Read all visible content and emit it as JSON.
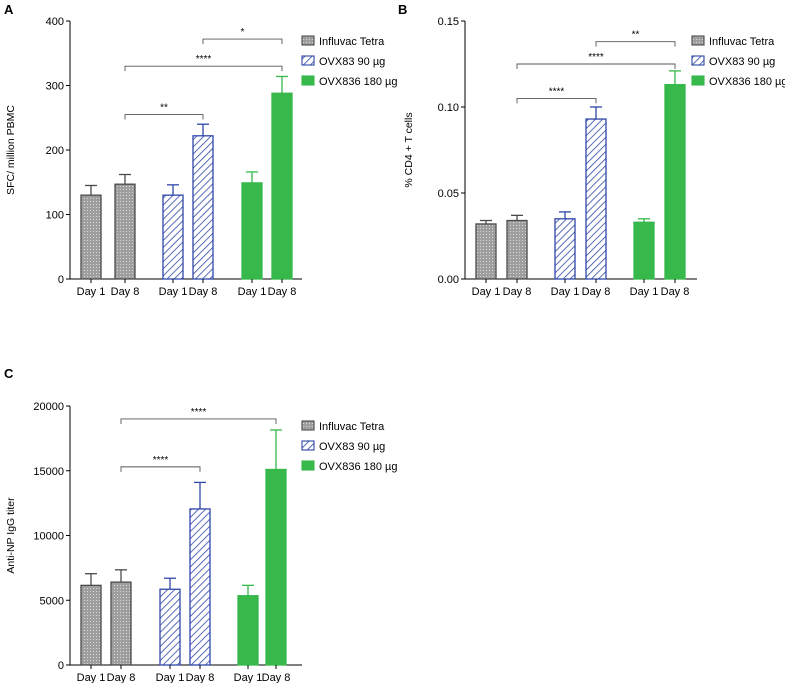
{
  "colors": {
    "influvac_fill": "#9e9e9e",
    "influvac_stroke": "#4a4a4a",
    "ovx83_stroke": "#2f46a8",
    "ovx836_fill": "#36b84a"
  },
  "chart_data": [
    {
      "panel_letter": "A",
      "type": "bar",
      "ylabel": "SFC/ million PBMC",
      "ylim": [
        0,
        400
      ],
      "yticks": [
        0,
        100,
        200,
        300,
        400
      ],
      "yticklabels": [
        "0",
        "100",
        "200",
        "300",
        "400"
      ],
      "categories": [
        "Day 1",
        "Day 8"
      ],
      "series": [
        {
          "name": "Influvac Tetra",
          "style": "influvac",
          "values": [
            130,
            147
          ],
          "errors": [
            15,
            15
          ]
        },
        {
          "name": "OVX83 90 µg",
          "style": "ovx83",
          "values": [
            130,
            222
          ],
          "errors": [
            16,
            18
          ]
        },
        {
          "name": "OVX836 180 µg",
          "style": "ovx836",
          "values": [
            149,
            288
          ],
          "errors": [
            17,
            26
          ]
        }
      ],
      "legend": [
        "Influvac Tetra",
        "OVX83 90 µg",
        "OVX836 180 µg"
      ],
      "legend_position": "top-right",
      "significance": [
        {
          "label": "**",
          "from": [
            0,
            1
          ],
          "to": [
            1,
            1
          ],
          "y": 255
        },
        {
          "label": "****",
          "from": [
            0,
            1
          ],
          "to": [
            2,
            1
          ],
          "y": 330
        },
        {
          "label": "*",
          "from": [
            1,
            1
          ],
          "to": [
            2,
            1
          ],
          "y": 372
        }
      ]
    },
    {
      "panel_letter": "B",
      "type": "bar",
      "ylabel": "% CD4 + T cells",
      "ylim": [
        0,
        0.15
      ],
      "yticks": [
        0,
        0.05,
        0.1,
        0.15
      ],
      "yticklabels": [
        "0.00",
        "0.05",
        "0.10",
        "0.15"
      ],
      "categories": [
        "Day 1",
        "Day 8"
      ],
      "series": [
        {
          "name": "Influvac Tetra",
          "style": "influvac",
          "values": [
            0.032,
            0.034
          ],
          "errors": [
            0.002,
            0.003
          ]
        },
        {
          "name": "OVX83 90 µg",
          "style": "ovx83",
          "values": [
            0.035,
            0.093
          ],
          "errors": [
            0.004,
            0.007
          ]
        },
        {
          "name": "OVX836 180 µg",
          "style": "ovx836",
          "values": [
            0.033,
            0.113
          ],
          "errors": [
            0.002,
            0.008
          ]
        }
      ],
      "legend": [
        "Influvac Tetra",
        "OVX83 90 µg",
        "OVX836 180 µg"
      ],
      "legend_position": "top-right",
      "significance": [
        {
          "label": "****",
          "from": [
            0,
            1
          ],
          "to": [
            1,
            1
          ],
          "y": 0.105
        },
        {
          "label": "****",
          "from": [
            0,
            1
          ],
          "to": [
            2,
            1
          ],
          "y": 0.125
        },
        {
          "label": "**",
          "from": [
            1,
            1
          ],
          "to": [
            2,
            1
          ],
          "y": 0.138
        }
      ]
    },
    {
      "panel_letter": "C",
      "type": "bar",
      "ylabel": "Anti-NP IgG titer",
      "ylim": [
        0,
        20000
      ],
      "yticks": [
        0,
        5000,
        10000,
        15000,
        20000
      ],
      "yticklabels": [
        "0",
        "5000",
        "10000",
        "15000",
        "20000"
      ],
      "categories": [
        "Day 1",
        "Day 8"
      ],
      "series": [
        {
          "name": "Influvac Tetra",
          "style": "influvac",
          "values": [
            6150,
            6400
          ],
          "errors": [
            900,
            950
          ]
        },
        {
          "name": "OVX83 90 µg",
          "style": "ovx83",
          "values": [
            5850,
            12050
          ],
          "errors": [
            850,
            2050
          ]
        },
        {
          "name": "OVX836 180 µg",
          "style": "ovx836",
          "values": [
            5350,
            15100
          ],
          "errors": [
            800,
            3050
          ]
        }
      ],
      "legend": [
        "Influvac Tetra",
        "OVX83 90 µg",
        "OVX836 180 µg"
      ],
      "legend_position": "top-right",
      "significance": [
        {
          "label": "****",
          "from": [
            0,
            1
          ],
          "to": [
            1,
            1
          ],
          "y": 15300
        },
        {
          "label": "****",
          "from": [
            0,
            1
          ],
          "to": [
            2,
            1
          ],
          "y": 19000
        }
      ]
    }
  ]
}
